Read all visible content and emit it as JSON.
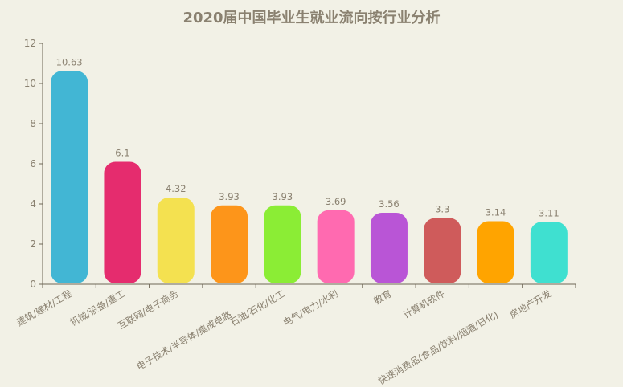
{
  "chart_data": {
    "type": "bar",
    "title": "2020届中国毕业生就业流向按行业分析",
    "xlabel": "",
    "ylabel": "",
    "ylim": [
      0,
      12
    ],
    "yticks": [
      0,
      2,
      4,
      6,
      8,
      10,
      12
    ],
    "grid": false,
    "legend": null,
    "categories": [
      "建筑/建材/工程",
      "机械/设备/重工",
      "互联网/电子商务",
      "电子技术/半导体/集成电路",
      "石油/石化/化工",
      "电气/电力/水利",
      "教育",
      "计算机软件",
      "快速消费品(食品/饮料/烟酒/日化)",
      "房地产开发"
    ],
    "values": [
      10.63,
      6.1,
      4.32,
      3.93,
      3.93,
      3.69,
      3.56,
      3.3,
      3.14,
      3.11
    ],
    "value_labels": [
      "10.63",
      "6.1",
      "4.32",
      "3.93",
      "3.93",
      "3.69",
      "3.56",
      "3.3",
      "3.14",
      "3.11"
    ],
    "colors": [
      "#42b6d4",
      "#e52c6e",
      "#f4e150",
      "#fd951a",
      "#8bed35",
      "#ff6ab0",
      "#b955d6",
      "#cf5b5b",
      "#ffa400",
      "#3fe0d0"
    ]
  }
}
